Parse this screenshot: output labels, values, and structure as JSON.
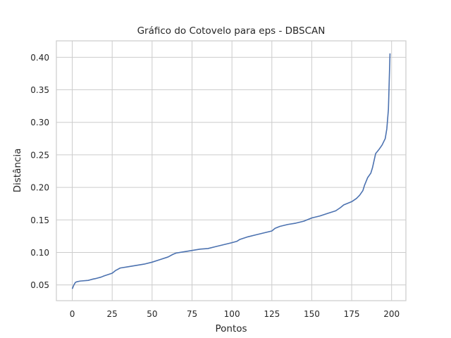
{
  "chart_data": {
    "type": "line",
    "title": "Gráfico do Cotovelo para eps - DBSCAN",
    "xlabel": "Pontos",
    "ylabel": "Distância",
    "xlim": [
      -9.95,
      208.95
    ],
    "ylim": [
      0.0258,
      0.4253
    ],
    "xticks": [
      0,
      25,
      50,
      75,
      100,
      125,
      150,
      175,
      200
    ],
    "yticks": [
      0.05,
      0.1,
      0.15,
      0.2,
      0.25,
      0.3,
      0.35,
      0.4
    ],
    "ytick_labels": [
      "0.05",
      "0.10",
      "0.15",
      "0.20",
      "0.25",
      "0.30",
      "0.35",
      "0.40"
    ],
    "grid": true,
    "series": [
      {
        "color": "#4c72b0",
        "x": [
          0,
          1,
          2,
          3,
          5,
          10,
          13,
          15,
          18,
          20,
          25,
          27,
          30,
          35,
          40,
          45,
          50,
          55,
          60,
          63,
          65,
          70,
          75,
          80,
          85,
          90,
          95,
          100,
          103,
          105,
          110,
          115,
          120,
          125,
          127,
          130,
          135,
          140,
          145,
          150,
          155,
          160,
          165,
          168,
          170,
          175,
          178,
          180,
          182,
          183,
          185,
          187,
          188,
          190,
          192,
          194,
          196,
          197,
          198,
          199
        ],
        "y": [
          0.044,
          0.05,
          0.054,
          0.055,
          0.056,
          0.057,
          0.059,
          0.06,
          0.062,
          0.064,
          0.068,
          0.072,
          0.076,
          0.078,
          0.08,
          0.082,
          0.085,
          0.089,
          0.093,
          0.097,
          0.099,
          0.101,
          0.103,
          0.105,
          0.106,
          0.109,
          0.112,
          0.115,
          0.117,
          0.12,
          0.124,
          0.127,
          0.13,
          0.133,
          0.137,
          0.14,
          0.143,
          0.145,
          0.148,
          0.153,
          0.156,
          0.16,
          0.164,
          0.169,
          0.173,
          0.178,
          0.183,
          0.188,
          0.195,
          0.203,
          0.215,
          0.222,
          0.23,
          0.252,
          0.258,
          0.265,
          0.275,
          0.29,
          0.32,
          0.406
        ]
      }
    ]
  }
}
